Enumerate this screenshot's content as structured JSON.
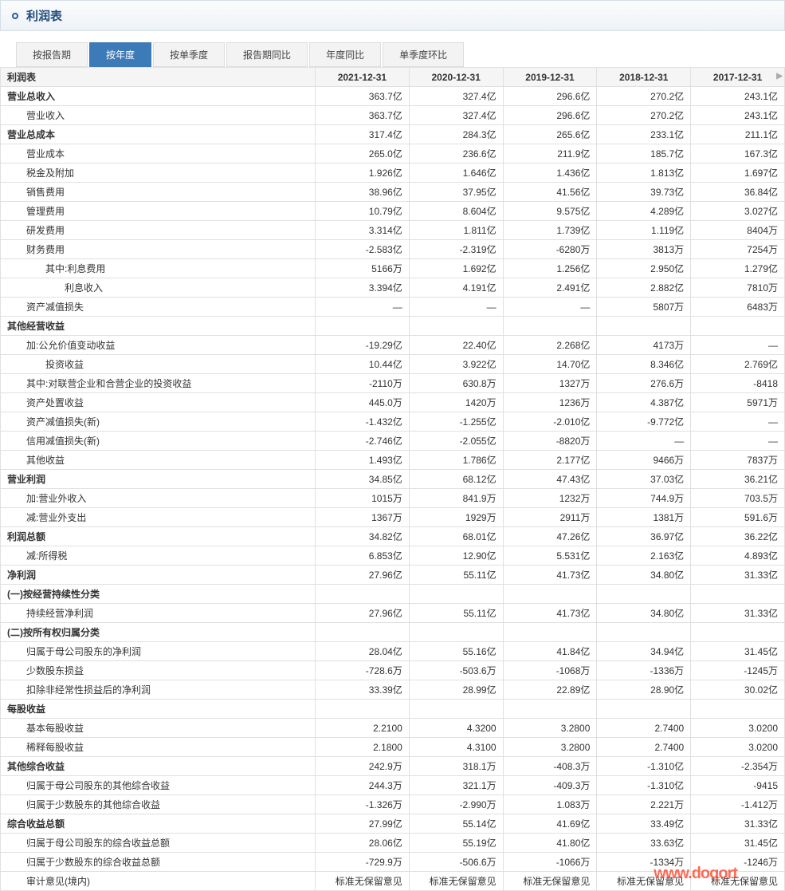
{
  "title": "利润表",
  "tabs": [
    {
      "label": "按报告期",
      "active": false
    },
    {
      "label": "按年度",
      "active": true
    },
    {
      "label": "按单季度",
      "active": false
    },
    {
      "label": "报告期同比",
      "active": false
    },
    {
      "label": "年度同比",
      "active": false
    },
    {
      "label": "单季度环比",
      "active": false
    }
  ],
  "table": {
    "header_label": "利润表",
    "columns": [
      "2021-12-31",
      "2020-12-31",
      "2019-12-31",
      "2018-12-31",
      "2017-12-31"
    ],
    "rows": [
      {
        "label": "营业总收入",
        "indent": 0,
        "bold": true,
        "vals": [
          "363.7亿",
          "327.4亿",
          "296.6亿",
          "270.2亿",
          "243.1亿"
        ]
      },
      {
        "label": "营业收入",
        "indent": 1,
        "vals": [
          "363.7亿",
          "327.4亿",
          "296.6亿",
          "270.2亿",
          "243.1亿"
        ]
      },
      {
        "label": "营业总成本",
        "indent": 0,
        "bold": true,
        "vals": [
          "317.4亿",
          "284.3亿",
          "265.6亿",
          "233.1亿",
          "211.1亿"
        ]
      },
      {
        "label": "营业成本",
        "indent": 1,
        "vals": [
          "265.0亿",
          "236.6亿",
          "211.9亿",
          "185.7亿",
          "167.3亿"
        ]
      },
      {
        "label": "税金及附加",
        "indent": 1,
        "vals": [
          "1.926亿",
          "1.646亿",
          "1.436亿",
          "1.813亿",
          "1.697亿"
        ]
      },
      {
        "label": "销售费用",
        "indent": 1,
        "vals": [
          "38.96亿",
          "37.95亿",
          "41.56亿",
          "39.73亿",
          "36.84亿"
        ]
      },
      {
        "label": "管理费用",
        "indent": 1,
        "vals": [
          "10.79亿",
          "8.604亿",
          "9.575亿",
          "4.289亿",
          "3.027亿"
        ]
      },
      {
        "label": "研发费用",
        "indent": 1,
        "vals": [
          "3.314亿",
          "1.811亿",
          "1.739亿",
          "1.119亿",
          "8404万"
        ]
      },
      {
        "label": "财务费用",
        "indent": 1,
        "vals": [
          "-2.583亿",
          "-2.319亿",
          "-6280万",
          "3813万",
          "7254万"
        ]
      },
      {
        "label": "其中:利息费用",
        "indent": 2,
        "vals": [
          "5166万",
          "1.692亿",
          "1.256亿",
          "2.950亿",
          "1.279亿"
        ]
      },
      {
        "label": "利息收入",
        "indent": 3,
        "vals": [
          "3.394亿",
          "4.191亿",
          "2.491亿",
          "2.882亿",
          "7810万"
        ]
      },
      {
        "label": "资产减值损失",
        "indent": 1,
        "vals": [
          "—",
          "—",
          "—",
          "5807万",
          "6483万"
        ]
      },
      {
        "label": "其他经营收益",
        "indent": 0,
        "bold": true,
        "vals": [
          "",
          "",
          "",
          "",
          ""
        ]
      },
      {
        "label": "加:公允价值变动收益",
        "indent": 1,
        "vals": [
          "-19.29亿",
          "22.40亿",
          "2.268亿",
          "4173万",
          "—"
        ]
      },
      {
        "label": "投资收益",
        "indent": 2,
        "vals": [
          "10.44亿",
          "3.922亿",
          "14.70亿",
          "8.346亿",
          "2.769亿"
        ]
      },
      {
        "label": "其中:对联营企业和合营企业的投资收益",
        "indent": 1,
        "vals": [
          "-2110万",
          "630.8万",
          "1327万",
          "276.6万",
          "-8418"
        ]
      },
      {
        "label": "资产处置收益",
        "indent": 1,
        "vals": [
          "445.0万",
          "1420万",
          "1236万",
          "4.387亿",
          "5971万"
        ]
      },
      {
        "label": "资产减值损失(新)",
        "indent": 1,
        "vals": [
          "-1.432亿",
          "-1.255亿",
          "-2.010亿",
          "-9.772亿",
          "—"
        ]
      },
      {
        "label": "信用减值损失(新)",
        "indent": 1,
        "vals": [
          "-2.746亿",
          "-2.055亿",
          "-8820万",
          "—",
          "—"
        ]
      },
      {
        "label": "其他收益",
        "indent": 1,
        "vals": [
          "1.493亿",
          "1.786亿",
          "2.177亿",
          "9466万",
          "7837万"
        ]
      },
      {
        "label": "营业利润",
        "indent": 0,
        "bold": true,
        "vals": [
          "34.85亿",
          "68.12亿",
          "47.43亿",
          "37.03亿",
          "36.21亿"
        ]
      },
      {
        "label": "加:营业外收入",
        "indent": 1,
        "vals": [
          "1015万",
          "841.9万",
          "1232万",
          "744.9万",
          "703.5万"
        ]
      },
      {
        "label": "减:营业外支出",
        "indent": 1,
        "vals": [
          "1367万",
          "1929万",
          "2911万",
          "1381万",
          "591.6万"
        ]
      },
      {
        "label": "利润总额",
        "indent": 0,
        "bold": true,
        "vals": [
          "34.82亿",
          "68.01亿",
          "47.26亿",
          "36.97亿",
          "36.22亿"
        ]
      },
      {
        "label": "减:所得税",
        "indent": 1,
        "vals": [
          "6.853亿",
          "12.90亿",
          "5.531亿",
          "2.163亿",
          "4.893亿"
        ]
      },
      {
        "label": "净利润",
        "indent": 0,
        "bold": true,
        "vals": [
          "27.96亿",
          "55.11亿",
          "41.73亿",
          "34.80亿",
          "31.33亿"
        ]
      },
      {
        "label": "(一)按经营持续性分类",
        "indent": 0,
        "bold": true,
        "vals": [
          "",
          "",
          "",
          "",
          ""
        ]
      },
      {
        "label": "持续经营净利润",
        "indent": 1,
        "vals": [
          "27.96亿",
          "55.11亿",
          "41.73亿",
          "34.80亿",
          "31.33亿"
        ]
      },
      {
        "label": "(二)按所有权归属分类",
        "indent": 0,
        "bold": true,
        "vals": [
          "",
          "",
          "",
          "",
          ""
        ]
      },
      {
        "label": "归属于母公司股东的净利润",
        "indent": 1,
        "vals": [
          "28.04亿",
          "55.16亿",
          "41.84亿",
          "34.94亿",
          "31.45亿"
        ]
      },
      {
        "label": "少数股东损益",
        "indent": 1,
        "vals": [
          "-728.6万",
          "-503.6万",
          "-1068万",
          "-1336万",
          "-1245万"
        ]
      },
      {
        "label": "扣除非经常性损益后的净利润",
        "indent": 1,
        "vals": [
          "33.39亿",
          "28.99亿",
          "22.89亿",
          "28.90亿",
          "30.02亿"
        ]
      },
      {
        "label": "每股收益",
        "indent": 0,
        "bold": true,
        "vals": [
          "",
          "",
          "",
          "",
          ""
        ]
      },
      {
        "label": "基本每股收益",
        "indent": 1,
        "vals": [
          "2.2100",
          "4.3200",
          "3.2800",
          "2.7400",
          "3.0200"
        ]
      },
      {
        "label": "稀释每股收益",
        "indent": 1,
        "vals": [
          "2.1800",
          "4.3100",
          "3.2800",
          "2.7400",
          "3.0200"
        ]
      },
      {
        "label": "其他综合收益",
        "indent": 0,
        "bold": true,
        "vals": [
          "242.9万",
          "318.1万",
          "-408.3万",
          "-1.310亿",
          "-2.354万"
        ]
      },
      {
        "label": "归属于母公司股东的其他综合收益",
        "indent": 1,
        "vals": [
          "244.3万",
          "321.1万",
          "-409.3万",
          "-1.310亿",
          "-9415"
        ]
      },
      {
        "label": "归属于少数股东的其他综合收益",
        "indent": 1,
        "vals": [
          "-1.326万",
          "-2.990万",
          "1.083万",
          "2.221万",
          "-1.412万"
        ]
      },
      {
        "label": "综合收益总额",
        "indent": 0,
        "bold": true,
        "vals": [
          "27.99亿",
          "55.14亿",
          "41.69亿",
          "33.49亿",
          "31.33亿"
        ]
      },
      {
        "label": "归属于母公司股东的综合收益总额",
        "indent": 1,
        "vals": [
          "28.06亿",
          "55.19亿",
          "41.80亿",
          "33.63亿",
          "31.45亿"
        ]
      },
      {
        "label": "归属于少数股东的综合收益总额",
        "indent": 1,
        "vals": [
          "-729.9万",
          "-506.6万",
          "-1066万",
          "-1334万",
          "-1246万"
        ]
      },
      {
        "label": "审计意见(境内)",
        "indent": 1,
        "vals": [
          "标准无保留意见",
          "标准无保留意见",
          "标准无保留意见",
          "标准无保留意见",
          "标准无保留意见"
        ]
      }
    ]
  },
  "watermark": "www.doqort"
}
